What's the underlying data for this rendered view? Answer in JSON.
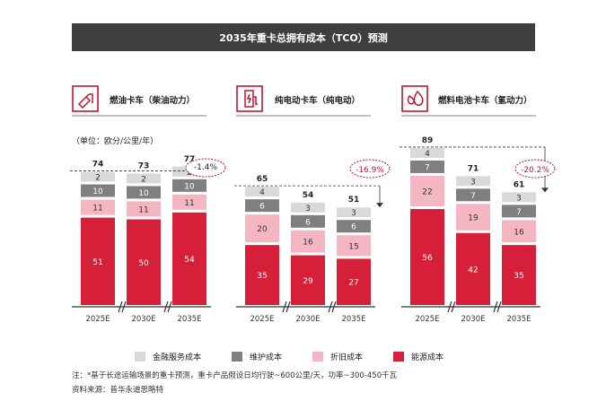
{
  "title": "2035年重卡总拥有成本（TCO）预测",
  "colors": {
    "finance": "#d9d9d9",
    "maintenance": "#7f7f7f",
    "depreciation": "#f4b6c2",
    "energy": "#d6203a",
    "accent": "#c0152f",
    "title_bg": "#3f3f3f"
  },
  "unit_label": "（单位：欧分/公里/年）",
  "legend": [
    {
      "key": "finance",
      "label": "金融服务成本"
    },
    {
      "key": "maintenance",
      "label": "维护成本"
    },
    {
      "key": "depreciation",
      "label": "折旧成本"
    },
    {
      "key": "energy",
      "label": "能源成本"
    }
  ],
  "chart_data": [
    {
      "type": "bar",
      "stacked": true,
      "title": "燃油卡车（柴油动力）",
      "icon": "fuel-pump-icon",
      "categories": [
        "2025E",
        "2030E",
        "2035E"
      ],
      "series": [
        {
          "name": "能源成本",
          "values": [
            51,
            50,
            54
          ]
        },
        {
          "name": "折旧成本",
          "values": [
            11,
            11,
            11
          ]
        },
        {
          "name": "维护成本",
          "values": [
            10,
            10,
            10
          ]
        },
        {
          "name": "金融服务成本",
          "values": [
            2,
            2,
            2
          ]
        }
      ],
      "totals": [
        74,
        73,
        77
      ],
      "change_label": "-1.4%"
    },
    {
      "type": "bar",
      "stacked": true,
      "title": "纯电动卡车（纯电动）",
      "icon": "ev-charger-icon",
      "categories": [
        "2025E",
        "2030E",
        "2035E"
      ],
      "series": [
        {
          "name": "能源成本",
          "values": [
            35,
            29,
            27
          ]
        },
        {
          "name": "折旧成本",
          "values": [
            20,
            16,
            15
          ]
        },
        {
          "name": "维护成本",
          "values": [
            6,
            6,
            6
          ]
        },
        {
          "name": "金融服务成本",
          "values": [
            4,
            3,
            3
          ]
        }
      ],
      "totals": [
        65,
        54,
        51
      ],
      "change_label": "-16.9%"
    },
    {
      "type": "bar",
      "stacked": true,
      "title": "燃料电池卡车（氢动力）",
      "icon": "water-drops-icon",
      "categories": [
        "2025E",
        "2030E",
        "2035E"
      ],
      "series": [
        {
          "name": "能源成本",
          "values": [
            56,
            42,
            35
          ]
        },
        {
          "name": "折旧成本",
          "values": [
            22,
            19,
            16
          ]
        },
        {
          "name": "维护成本",
          "values": [
            7,
            7,
            7
          ]
        },
        {
          "name": "金融服务成本",
          "values": [
            4,
            3,
            3
          ]
        }
      ],
      "totals": [
        89,
        71,
        61
      ],
      "change_label": "-20.2%"
    }
  ],
  "note": "注：*基于长途运输场景的重卡预测，重卡产品假设日均行驶~600公里/天，功率~300-450千瓦",
  "source": "资料来源：普华永道思略特"
}
